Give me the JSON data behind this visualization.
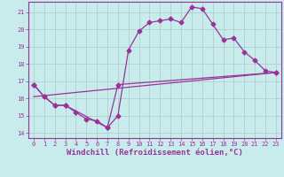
{
  "xlabel": "Windchill (Refroidissement éolien,°C)",
  "bg_color": "#c8ecec",
  "grid_color": "#b0cece",
  "line_color": "#993399",
  "xlim": [
    -0.5,
    23.5
  ],
  "ylim": [
    13.7,
    21.6
  ],
  "xticks": [
    0,
    1,
    2,
    3,
    4,
    5,
    6,
    7,
    8,
    9,
    10,
    11,
    12,
    13,
    14,
    15,
    16,
    17,
    18,
    19,
    20,
    21,
    22,
    23
  ],
  "yticks": [
    14,
    15,
    16,
    17,
    18,
    19,
    20,
    21
  ],
  "line1_x": [
    0,
    1,
    2,
    3,
    4,
    5,
    6,
    7,
    8,
    9,
    10,
    11,
    12,
    13,
    14,
    15,
    16,
    17,
    18,
    19,
    20,
    21,
    22,
    23
  ],
  "line1_y": [
    16.8,
    16.1,
    15.6,
    15.6,
    15.2,
    14.8,
    14.7,
    14.3,
    15.0,
    18.8,
    19.9,
    20.4,
    20.5,
    20.6,
    20.4,
    21.3,
    21.2,
    20.3,
    19.4,
    19.5,
    18.7,
    18.2,
    17.6,
    17.5
  ],
  "line2_x": [
    0,
    1,
    2,
    3,
    7,
    8,
    23
  ],
  "line2_y": [
    16.8,
    16.1,
    15.6,
    15.6,
    14.3,
    16.8,
    17.5
  ],
  "line3_x": [
    0,
    23
  ],
  "line3_y": [
    16.1,
    17.5
  ],
  "marker": "D",
  "markersize": 2.5,
  "linewidth": 0.9,
  "tick_fontsize": 5,
  "xlabel_fontsize": 6.5,
  "xlabel_color": "#993399",
  "tick_color": "#993399",
  "axis_color": "#993399"
}
